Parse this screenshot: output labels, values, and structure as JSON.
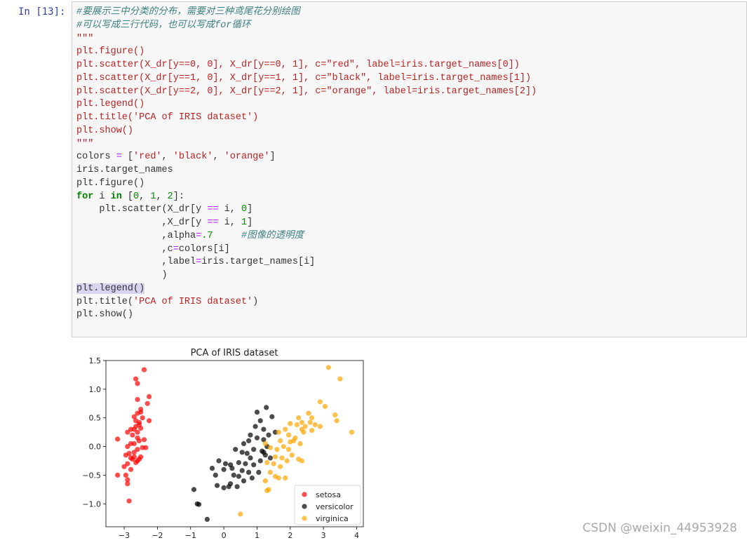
{
  "cell": {
    "prompt": "In [13]:",
    "code_lines": [
      "#要展示三中分类的分布，需要对三种鸢尾花分别绘图",
      "#可以写成三行代码，也可以写成for循环",
      "\"\"\"",
      "plt.figure()",
      "plt.scatter(X_dr[y==0, 0], X_dr[y==0, 1], c=\"red\", label=iris.target_names[0])",
      "plt.scatter(X_dr[y==1, 0], X_dr[y==1, 1], c=\"black\", label=iris.target_names[1])",
      "plt.scatter(X_dr[y==2, 0], X_dr[y==2, 1], c=\"orange\", label=iris.target_names[2])",
      "plt.legend()",
      "plt.title('PCA of IRIS dataset')",
      "plt.show()",
      "\"\"\"",
      "colors = ['red', 'black', 'orange']",
      "iris.target_names",
      "plt.figure()",
      "for i in [0, 1, 2]:",
      "    plt.scatter(X_dr[y == i, 0]",
      "               ,X_dr[y == i, 1]",
      "               ,alpha=.7     #图像的透明度",
      "               ,c=colors[i]",
      "               ,label=iris.target_names[i]",
      "               )",
      "plt.legend()",
      "plt.title('PCA of IRIS dataset')",
      "plt.show()"
    ]
  },
  "chart_data": {
    "type": "scatter",
    "title": "PCA of IRIS dataset",
    "xlabel": "",
    "ylabel": "",
    "xlim": [
      -3.55,
      4.2
    ],
    "ylim": [
      -1.4,
      1.5
    ],
    "xticks": [
      -3,
      -2,
      -1,
      0,
      1,
      2,
      3,
      4
    ],
    "xtick_labels": [
      "−3",
      "−2",
      "−1",
      "0",
      "1",
      "2",
      "3",
      "4"
    ],
    "yticks": [
      -1.0,
      -0.5,
      0.0,
      0.5,
      1.0,
      1.5
    ],
    "ytick_labels": [
      "−1.0",
      "−0.5",
      "0.0",
      "0.5",
      "1.0",
      "1.5"
    ],
    "legend_position": "lower-right",
    "grid": false,
    "series": [
      {
        "name": "setosa",
        "color": "#ff0000",
        "points": [
          [
            -2.4,
            1.34
          ],
          [
            -2.65,
            1.18
          ],
          [
            -2.6,
            1.1
          ],
          [
            -2.25,
            0.87
          ],
          [
            -2.6,
            0.82
          ],
          [
            -2.3,
            0.75
          ],
          [
            -2.5,
            0.65
          ],
          [
            -2.6,
            0.58
          ],
          [
            -2.7,
            0.52
          ],
          [
            -2.45,
            0.5
          ],
          [
            -2.25,
            0.45
          ],
          [
            -2.55,
            0.42
          ],
          [
            -2.65,
            0.35
          ],
          [
            -2.8,
            0.3
          ],
          [
            -2.7,
            0.3
          ],
          [
            -2.9,
            0.25
          ],
          [
            -2.5,
            0.32
          ],
          [
            -2.6,
            0.25
          ],
          [
            -3.2,
            0.13
          ],
          [
            -2.4,
            0.12
          ],
          [
            -2.55,
            0.1
          ],
          [
            -2.8,
            0.05
          ],
          [
            -2.9,
            0.0
          ],
          [
            -2.35,
            -0.02
          ],
          [
            -2.6,
            -0.05
          ],
          [
            -2.7,
            -0.1
          ],
          [
            -2.85,
            -0.12
          ],
          [
            -2.95,
            -0.15
          ],
          [
            -2.5,
            -0.18
          ],
          [
            -2.75,
            -0.22
          ],
          [
            -2.65,
            -0.28
          ],
          [
            -2.9,
            -0.3
          ],
          [
            -3.0,
            -0.35
          ],
          [
            -2.8,
            -0.4
          ],
          [
            -3.2,
            -0.5
          ],
          [
            -2.95,
            -0.5
          ],
          [
            -2.9,
            -0.58
          ],
          [
            -2.9,
            -0.65
          ],
          [
            -2.85,
            -0.95
          ],
          [
            -2.55,
            -0.22
          ],
          [
            -2.7,
            -0.18
          ],
          [
            -2.45,
            -0.02
          ],
          [
            -2.6,
            0.15
          ],
          [
            -2.75,
            0.2
          ],
          [
            -2.5,
            0.6
          ],
          [
            -2.65,
            0.45
          ],
          [
            -2.8,
            -0.2
          ],
          [
            -2.6,
            -0.25
          ],
          [
            -2.55,
            0.38
          ],
          [
            -2.7,
            0.05
          ]
        ]
      },
      {
        "name": "versicolor",
        "color": "#000000",
        "points": [
          [
            1.28,
            0.68
          ],
          [
            1.0,
            0.6
          ],
          [
            1.45,
            0.52
          ],
          [
            1.1,
            0.45
          ],
          [
            0.95,
            0.35
          ],
          [
            1.2,
            0.3
          ],
          [
            1.55,
            0.25
          ],
          [
            0.8,
            0.2
          ],
          [
            1.0,
            0.15
          ],
          [
            1.2,
            0.12
          ],
          [
            1.3,
            0.0
          ],
          [
            0.6,
            0.05
          ],
          [
            0.75,
            0.1
          ],
          [
            0.9,
            -0.05
          ],
          [
            1.15,
            -0.08
          ],
          [
            0.35,
            -0.05
          ],
          [
            0.55,
            -0.1
          ],
          [
            0.7,
            -0.12
          ],
          [
            1.25,
            -0.15
          ],
          [
            1.4,
            -0.2
          ],
          [
            1.1,
            -0.25
          ],
          [
            -0.15,
            -0.25
          ],
          [
            0.05,
            -0.3
          ],
          [
            0.2,
            -0.32
          ],
          [
            0.45,
            -0.28
          ],
          [
            0.65,
            -0.3
          ],
          [
            0.9,
            -0.32
          ],
          [
            -0.35,
            -0.38
          ],
          [
            0.0,
            -0.4
          ],
          [
            0.25,
            -0.38
          ],
          [
            0.55,
            -0.42
          ],
          [
            0.75,
            -0.45
          ],
          [
            1.05,
            -0.45
          ],
          [
            -0.25,
            -0.5
          ],
          [
            0.3,
            -0.5
          ],
          [
            0.45,
            -0.52
          ],
          [
            0.85,
            -0.55
          ],
          [
            0.6,
            -0.6
          ],
          [
            0.2,
            -0.65
          ],
          [
            -0.2,
            -0.68
          ],
          [
            0.0,
            -0.72
          ],
          [
            0.15,
            -0.7
          ],
          [
            0.4,
            -0.7
          ],
          [
            -0.9,
            -0.75
          ],
          [
            -0.8,
            -1.0
          ],
          [
            -0.75,
            -1.01
          ],
          [
            -0.5,
            -1.27
          ],
          [
            1.2,
            -0.1
          ],
          [
            0.8,
            -0.2
          ],
          [
            1.35,
            0.2
          ]
        ]
      },
      {
        "name": "virginica",
        "color": "#ffa500",
        "points": [
          [
            3.15,
            1.38
          ],
          [
            3.5,
            1.18
          ],
          [
            2.9,
            0.78
          ],
          [
            3.05,
            0.7
          ],
          [
            3.35,
            0.55
          ],
          [
            2.55,
            0.58
          ],
          [
            2.65,
            0.5
          ],
          [
            2.25,
            0.5
          ],
          [
            2.35,
            0.42
          ],
          [
            3.4,
            0.45
          ],
          [
            2.0,
            0.4
          ],
          [
            2.2,
            0.38
          ],
          [
            2.45,
            0.35
          ],
          [
            2.75,
            0.38
          ],
          [
            2.9,
            0.35
          ],
          [
            1.85,
            0.3
          ],
          [
            2.35,
            0.3
          ],
          [
            2.65,
            0.28
          ],
          [
            3.85,
            0.25
          ],
          [
            1.65,
            0.25
          ],
          [
            1.95,
            0.2
          ],
          [
            2.15,
            0.15
          ],
          [
            1.7,
            0.1
          ],
          [
            2.0,
            0.08
          ],
          [
            2.3,
            0.05
          ],
          [
            1.8,
            0.0
          ],
          [
            1.25,
            0.05
          ],
          [
            1.4,
            -0.02
          ],
          [
            1.6,
            -0.05
          ],
          [
            1.95,
            -0.05
          ],
          [
            2.05,
            -0.15
          ],
          [
            1.55,
            -0.18
          ],
          [
            1.75,
            -0.2
          ],
          [
            2.25,
            -0.22
          ],
          [
            2.35,
            -0.25
          ],
          [
            1.3,
            -0.28
          ],
          [
            1.5,
            -0.3
          ],
          [
            1.7,
            -0.35
          ],
          [
            1.4,
            -0.45
          ],
          [
            1.55,
            -0.52
          ],
          [
            1.85,
            -0.55
          ],
          [
            1.25,
            -0.6
          ],
          [
            1.65,
            -0.55
          ],
          [
            1.35,
            -0.75
          ],
          [
            1.3,
            -0.77
          ],
          [
            0.5,
            -1.18
          ],
          [
            2.1,
            0.1
          ],
          [
            2.4,
            0.25
          ],
          [
            1.9,
            -0.25
          ],
          [
            2.6,
            0.42
          ]
        ]
      }
    ]
  },
  "watermark": "CSDN @weixin_44953928"
}
